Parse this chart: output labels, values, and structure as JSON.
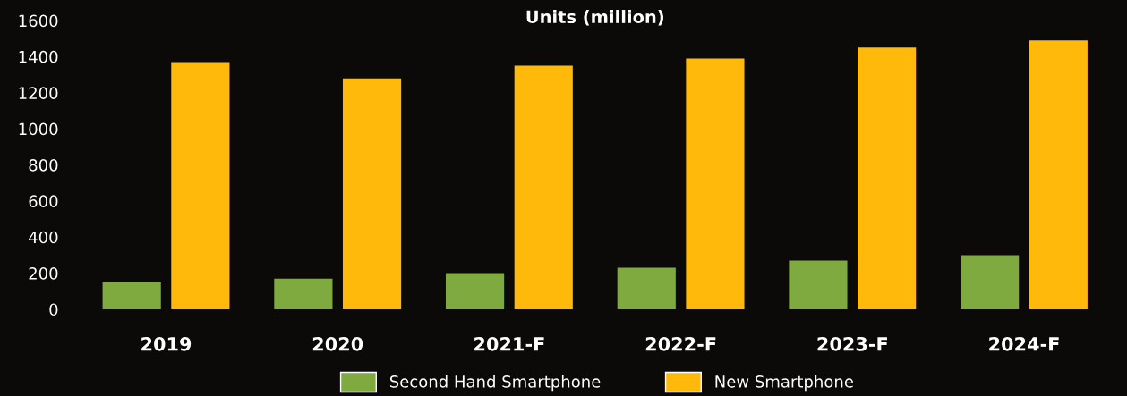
{
  "chart_data": {
    "type": "bar",
    "title": "Units (million)",
    "categories": [
      "2019",
      "2020",
      "2021-F",
      "2022-F",
      "2023-F",
      "2024-F"
    ],
    "series": [
      {
        "name": "Second Hand Smartphone",
        "color": "#7faa3f",
        "values": [
          150,
          170,
          200,
          230,
          270,
          300
        ]
      },
      {
        "name": "New Smartphone",
        "color": "#ffb90a",
        "values": [
          1370,
          1280,
          1350,
          1390,
          1450,
          1490
        ]
      }
    ],
    "ylim": [
      0,
      1600
    ],
    "yticks": [
      0,
      200,
      400,
      600,
      800,
      1000,
      1200,
      1400,
      1600
    ],
    "grid": false,
    "legend": "bottom"
  }
}
